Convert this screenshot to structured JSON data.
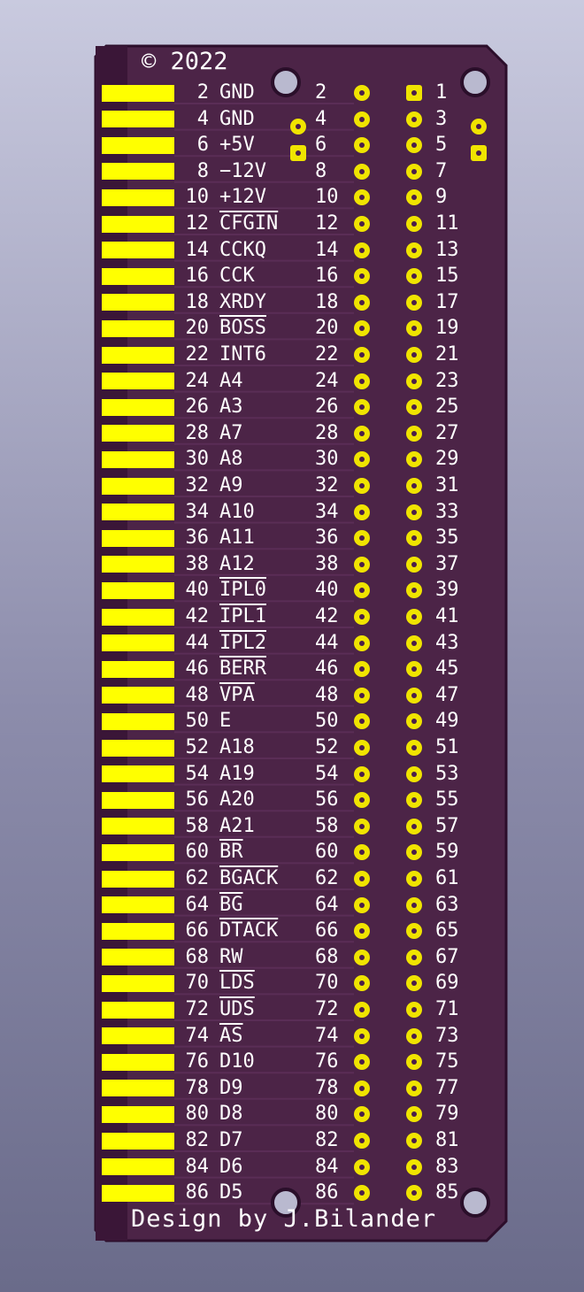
{
  "header": {
    "copyright": "© 2022"
  },
  "footer": {
    "credit": "Design by  J.Bilander"
  },
  "colors": {
    "board": "#4c2447",
    "edge": "#2c0e2b",
    "pads": "#ffff00",
    "silk": "#ffffff"
  },
  "extra_pads": [
    "upper-right",
    "lower-right",
    "upper-left",
    "lower-left"
  ],
  "pins": [
    {
      "even": "2",
      "signal": "GND",
      "odd": "1",
      "bar": false
    },
    {
      "even": "4",
      "signal": "GND",
      "odd": "3",
      "bar": false
    },
    {
      "even": "6",
      "signal": "+5V",
      "odd": "5",
      "bar": false
    },
    {
      "even": "8",
      "signal": "−12V",
      "odd": "7",
      "bar": false
    },
    {
      "even": "10",
      "signal": "+12V",
      "odd": "9",
      "bar": false
    },
    {
      "even": "12",
      "signal": "CFGIN",
      "odd": "11",
      "bar": true
    },
    {
      "even": "14",
      "signal": "CCKQ",
      "odd": "13",
      "bar": false
    },
    {
      "even": "16",
      "signal": "CCK",
      "odd": "15",
      "bar": false
    },
    {
      "even": "18",
      "signal": "XRDY",
      "odd": "17",
      "bar": false
    },
    {
      "even": "20",
      "signal": "BOSS",
      "odd": "19",
      "bar": true
    },
    {
      "even": "22",
      "signal": "INT6",
      "odd": "21",
      "bar": false
    },
    {
      "even": "24",
      "signal": "A4",
      "odd": "23",
      "bar": false
    },
    {
      "even": "26",
      "signal": "A3",
      "odd": "25",
      "bar": false
    },
    {
      "even": "28",
      "signal": "A7",
      "odd": "27",
      "bar": false
    },
    {
      "even": "30",
      "signal": "A8",
      "odd": "29",
      "bar": false
    },
    {
      "even": "32",
      "signal": "A9",
      "odd": "31",
      "bar": false
    },
    {
      "even": "34",
      "signal": "A10",
      "odd": "33",
      "bar": false
    },
    {
      "even": "36",
      "signal": "A11",
      "odd": "35",
      "bar": false
    },
    {
      "even": "38",
      "signal": "A12",
      "odd": "37",
      "bar": false
    },
    {
      "even": "40",
      "signal": "IPL0",
      "odd": "39",
      "bar": true
    },
    {
      "even": "42",
      "signal": "IPL1",
      "odd": "41",
      "bar": true
    },
    {
      "even": "44",
      "signal": "IPL2",
      "odd": "43",
      "bar": true
    },
    {
      "even": "46",
      "signal": "BERR",
      "odd": "45",
      "bar": true
    },
    {
      "even": "48",
      "signal": "VPA",
      "odd": "47",
      "bar": true
    },
    {
      "even": "50",
      "signal": "E",
      "odd": "49",
      "bar": false
    },
    {
      "even": "52",
      "signal": "A18",
      "odd": "51",
      "bar": false
    },
    {
      "even": "54",
      "signal": "A19",
      "odd": "53",
      "bar": false
    },
    {
      "even": "56",
      "signal": "A20",
      "odd": "55",
      "bar": false
    },
    {
      "even": "58",
      "signal": "A21",
      "odd": "57",
      "bar": false
    },
    {
      "even": "60",
      "signal": "BR",
      "odd": "59",
      "bar": true
    },
    {
      "even": "62",
      "signal": "BGACK",
      "odd": "61",
      "bar": true
    },
    {
      "even": "64",
      "signal": "BG",
      "odd": "63",
      "bar": true
    },
    {
      "even": "66",
      "signal": "DTACK",
      "odd": "65",
      "bar": true
    },
    {
      "even": "68",
      "signal": "RW",
      "odd": "67",
      "bar": false
    },
    {
      "even": "70",
      "signal": "LDS",
      "odd": "69",
      "bar": true
    },
    {
      "even": "72",
      "signal": "UDS",
      "odd": "71",
      "bar": true
    },
    {
      "even": "74",
      "signal": "AS",
      "odd": "73",
      "bar": true
    },
    {
      "even": "76",
      "signal": "D10",
      "odd": "75",
      "bar": false
    },
    {
      "even": "78",
      "signal": "D9",
      "odd": "77",
      "bar": false
    },
    {
      "even": "80",
      "signal": "D8",
      "odd": "79",
      "bar": false
    },
    {
      "even": "82",
      "signal": "D7",
      "odd": "81",
      "bar": false
    },
    {
      "even": "84",
      "signal": "D6",
      "odd": "83",
      "bar": false
    },
    {
      "even": "86",
      "signal": "D5",
      "odd": "85",
      "bar": false
    }
  ]
}
